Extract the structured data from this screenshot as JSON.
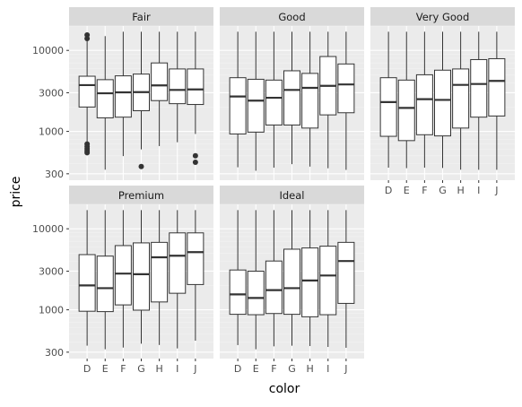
{
  "chart_data": {
    "type": "boxplot",
    "facet_by": "cut",
    "facet_layout": "3 columns x 2 rows",
    "xlabel": "color",
    "ylabel": "price",
    "y_scale": "log10",
    "ylim": [
      250,
      20000
    ],
    "y_ticks": [
      300,
      1000,
      3000,
      10000
    ],
    "y_tick_labels": [
      "300",
      "1000",
      "3000",
      "10000"
    ],
    "categories": [
      "D",
      "E",
      "F",
      "G",
      "H",
      "I",
      "J"
    ],
    "grid": "on",
    "legend": "none",
    "colors": {
      "panel_bg": "#ebebeb",
      "grid_major": "#ffffff",
      "grid_minor": "#f3f3f3",
      "strip_bg": "#d9d9d9",
      "box_fill": "#ffffff",
      "box_stroke": "#333333",
      "tick_label": "#4d4d4d",
      "axis_title": "#000000"
    },
    "facets": [
      {
        "name": "Fair",
        "boxes": [
          {
            "color": "D",
            "whisker_low": 536,
            "q1": 2000,
            "median": 3730,
            "q3": 4800,
            "whisker_high": 15000,
            "outliers": [
              14000,
              15500,
              700,
              650,
              610,
              575,
              545
            ]
          },
          {
            "color": "E",
            "whisker_low": 337,
            "q1": 1470,
            "median": 2956,
            "q3": 4350,
            "whisker_high": 15000,
            "outliers": []
          },
          {
            "color": "F",
            "whisker_low": 496,
            "q1": 1500,
            "median": 3035,
            "q3": 4850,
            "whisker_high": 17000,
            "outliers": []
          },
          {
            "color": "G",
            "whisker_low": 600,
            "q1": 1800,
            "median": 3057,
            "q3": 5100,
            "whisker_high": 17000,
            "outliers": [
              369
            ]
          },
          {
            "color": "H",
            "whisker_low": 659,
            "q1": 2400,
            "median": 3700,
            "q3": 7000,
            "whisker_high": 17000,
            "outliers": []
          },
          {
            "color": "I",
            "whisker_low": 735,
            "q1": 2200,
            "median": 3250,
            "q3": 5900,
            "whisker_high": 17000,
            "outliers": []
          },
          {
            "color": "J",
            "whisker_low": 930,
            "q1": 2150,
            "median": 3300,
            "q3": 5900,
            "whisker_high": 17000,
            "outliers": [
              500,
              416
            ]
          }
        ]
      },
      {
        "name": "Good",
        "boxes": [
          {
            "color": "D",
            "whisker_low": 361,
            "q1": 930,
            "median": 2700,
            "q3": 4600,
            "whisker_high": 17000,
            "outliers": []
          },
          {
            "color": "E",
            "whisker_low": 327,
            "q1": 980,
            "median": 2400,
            "q3": 4400,
            "whisker_high": 17000,
            "outliers": []
          },
          {
            "color": "F",
            "whisker_low": 357,
            "q1": 1200,
            "median": 2600,
            "q3": 4300,
            "whisker_high": 17000,
            "outliers": []
          },
          {
            "color": "G",
            "whisker_low": 394,
            "q1": 1200,
            "median": 3250,
            "q3": 5600,
            "whisker_high": 17000,
            "outliers": []
          },
          {
            "color": "H",
            "whisker_low": 368,
            "q1": 1100,
            "median": 3450,
            "q3": 5200,
            "whisker_high": 17000,
            "outliers": []
          },
          {
            "color": "I",
            "whisker_low": 351,
            "q1": 1600,
            "median": 3650,
            "q3": 8400,
            "whisker_high": 17000,
            "outliers": []
          },
          {
            "color": "J",
            "whisker_low": 335,
            "q1": 1700,
            "median": 3800,
            "q3": 6800,
            "whisker_high": 17000,
            "outliers": []
          }
        ]
      },
      {
        "name": "Very Good",
        "boxes": [
          {
            "color": "D",
            "whisker_low": 357,
            "q1": 870,
            "median": 2300,
            "q3": 4600,
            "whisker_high": 17000,
            "outliers": []
          },
          {
            "color": "E",
            "whisker_low": 352,
            "q1": 770,
            "median": 1950,
            "q3": 4300,
            "whisker_high": 17000,
            "outliers": []
          },
          {
            "color": "F",
            "whisker_low": 357,
            "q1": 910,
            "median": 2500,
            "q3": 5000,
            "whisker_high": 17000,
            "outliers": []
          },
          {
            "color": "G",
            "whisker_low": 354,
            "q1": 880,
            "median": 2450,
            "q3": 5700,
            "whisker_high": 17000,
            "outliers": []
          },
          {
            "color": "H",
            "whisker_low": 337,
            "q1": 1100,
            "median": 3750,
            "q3": 5900,
            "whisker_high": 17000,
            "outliers": []
          },
          {
            "color": "I",
            "whisker_low": 336,
            "q1": 1500,
            "median": 3850,
            "q3": 7700,
            "whisker_high": 17000,
            "outliers": []
          },
          {
            "color": "J",
            "whisker_low": 336,
            "q1": 1550,
            "median": 4200,
            "q3": 7900,
            "whisker_high": 17000,
            "outliers": []
          }
        ]
      },
      {
        "name": "Premium",
        "boxes": [
          {
            "color": "D",
            "whisker_low": 361,
            "q1": 960,
            "median": 2000,
            "q3": 4800,
            "whisker_high": 17000,
            "outliers": []
          },
          {
            "color": "E",
            "whisker_low": 326,
            "q1": 950,
            "median": 1850,
            "q3": 4600,
            "whisker_high": 17000,
            "outliers": []
          },
          {
            "color": "F",
            "whisker_low": 342,
            "q1": 1150,
            "median": 2800,
            "q3": 6200,
            "whisker_high": 17000,
            "outliers": []
          },
          {
            "color": "G",
            "whisker_low": 382,
            "q1": 990,
            "median": 2750,
            "q3": 6700,
            "whisker_high": 17000,
            "outliers": []
          },
          {
            "color": "H",
            "whisker_low": 368,
            "q1": 1250,
            "median": 4450,
            "q3": 6800,
            "whisker_high": 17000,
            "outliers": []
          },
          {
            "color": "I",
            "whisker_low": 334,
            "q1": 1600,
            "median": 4650,
            "q3": 8900,
            "whisker_high": 17000,
            "outliers": []
          },
          {
            "color": "J",
            "whisker_low": 416,
            "q1": 2050,
            "median": 5150,
            "q3": 8900,
            "whisker_high": 17000,
            "outliers": []
          }
        ]
      },
      {
        "name": "Ideal",
        "boxes": [
          {
            "color": "D",
            "whisker_low": 367,
            "q1": 880,
            "median": 1550,
            "q3": 3100,
            "whisker_high": 17000,
            "outliers": []
          },
          {
            "color": "E",
            "whisker_low": 326,
            "q1": 870,
            "median": 1400,
            "q3": 3000,
            "whisker_high": 17000,
            "outliers": []
          },
          {
            "color": "F",
            "whisker_low": 354,
            "q1": 900,
            "median": 1750,
            "q3": 4000,
            "whisker_high": 17000,
            "outliers": []
          },
          {
            "color": "G",
            "whisker_low": 361,
            "q1": 880,
            "median": 1850,
            "q3": 5600,
            "whisker_high": 17000,
            "outliers": []
          },
          {
            "color": "H",
            "whisker_low": 357,
            "q1": 820,
            "median": 2300,
            "q3": 5800,
            "whisker_high": 17000,
            "outliers": []
          },
          {
            "color": "I",
            "whisker_low": 348,
            "q1": 870,
            "median": 2650,
            "q3": 6100,
            "whisker_high": 17000,
            "outliers": []
          },
          {
            "color": "J",
            "whisker_low": 340,
            "q1": 1200,
            "median": 4000,
            "q3": 6800,
            "whisker_high": 17000,
            "outliers": []
          }
        ]
      }
    ]
  }
}
